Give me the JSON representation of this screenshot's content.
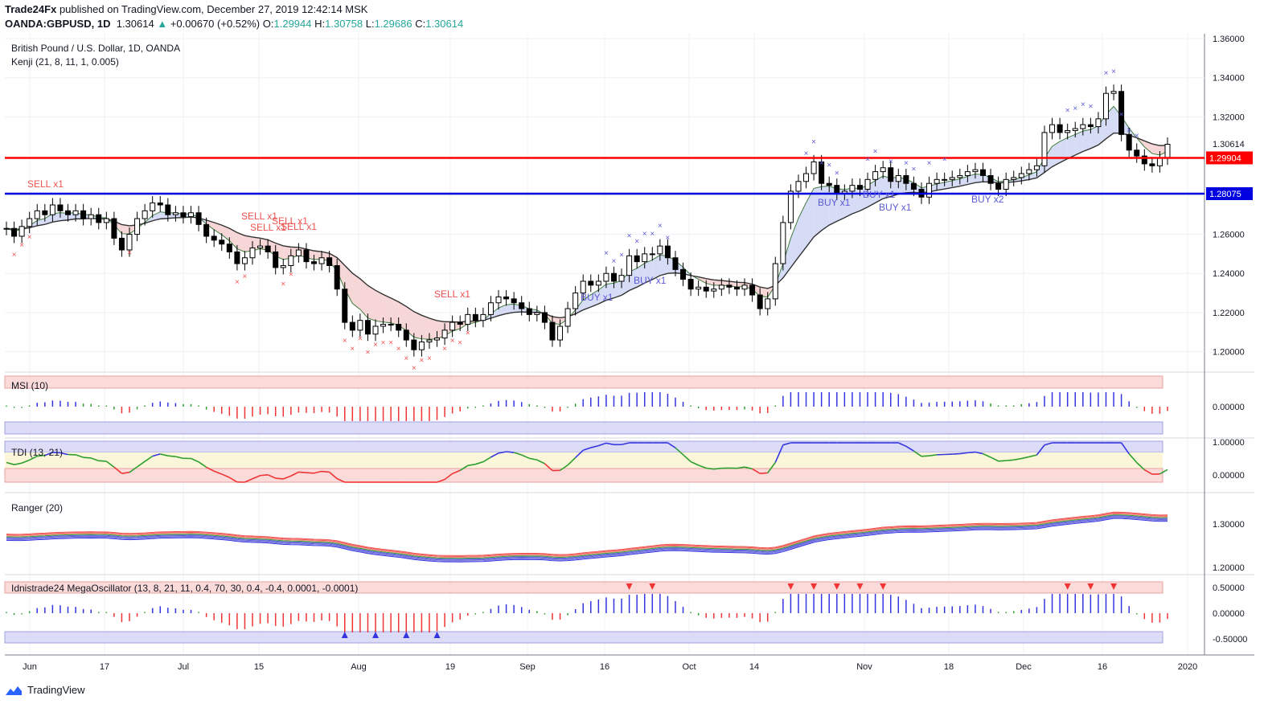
{
  "header": {
    "publisher": "Trade24Fx",
    "published_text": "published on TradingView.com, December 27, 2019 12:42:14 MSK",
    "symbol": "OANDA:GBPUSD, 1D",
    "last": "1.30614",
    "change": "+0.00670 (+0.52%)",
    "o_label": "O:",
    "o": "1.29944",
    "h_label": "H:",
    "h": "1.30758",
    "l_label": "L:",
    "l": "1.29686",
    "c_label": "C:",
    "c": "1.30614"
  },
  "main_pane": {
    "title": "British Pound / U.S. Dollar, 1D, OANDA",
    "indicator": "Kenji (21, 8, 11, 1, 0.005)",
    "price_ticks": [
      "1.36000",
      "1.34000",
      "1.32000",
      "1.30614",
      "1.28000",
      "1.26000",
      "1.24000",
      "1.22000",
      "1.20000"
    ],
    "red_level": "1.29904",
    "blue_level": "1.28075",
    "signals": [
      {
        "text": "SELL x1"
      },
      {
        "text": "SELL x1"
      },
      {
        "text": "SELL x1"
      },
      {
        "text": "SELL x1"
      },
      {
        "text": "SELL x1"
      },
      {
        "text": "SELL x1"
      },
      {
        "text": "BUY x1"
      },
      {
        "text": "BUY x1"
      },
      {
        "text": "BUY x1"
      },
      {
        "text": "BUY x1"
      },
      {
        "text": "BUY x1"
      },
      {
        "text": "BUY x2"
      }
    ]
  },
  "panes": [
    {
      "name": "MSI (10)",
      "ticks": [
        "0.00000"
      ]
    },
    {
      "name": "TDI (13, 21)",
      "ticks": [
        "1.00000",
        "0.00000"
      ]
    },
    {
      "name": "Ranger (20)",
      "ticks": [
        "1.30000",
        "1.20000"
      ]
    },
    {
      "name": "Idnistrade24 MegaOscillator (13, 8, 21, 11, 0.4, 70, 30, 0.4, -0.4, 0.0001, -0.0001)",
      "ticks": [
        "0.50000",
        "0.00000",
        "-0.50000"
      ]
    }
  ],
  "time_axis": [
    "Jun",
    "17",
    "Jul",
    "15",
    "Aug",
    "19",
    "Sep",
    "16",
    "Oct",
    "14",
    "Nov",
    "18",
    "Dec",
    "16",
    "2020"
  ],
  "footer": {
    "brand": "TradingView"
  },
  "colors": {
    "up": "#ffffff",
    "down": "#000000",
    "red_line": "#ff0000",
    "blue_line": "#0000e0",
    "sell": "#ef5350",
    "buy": "#5b5bd6"
  },
  "chart_data": {
    "type": "candlestick",
    "closes": [
      1.263,
      1.259,
      1.264,
      1.268,
      1.272,
      1.27,
      1.275,
      1.272,
      1.27,
      1.272,
      1.268,
      1.27,
      1.266,
      1.268,
      1.258,
      1.252,
      1.26,
      1.268,
      1.272,
      1.276,
      1.275,
      1.27,
      1.271,
      1.269,
      1.271,
      1.265,
      1.259,
      1.257,
      1.255,
      1.251,
      1.245,
      1.248,
      1.253,
      1.254,
      1.251,
      1.243,
      1.244,
      1.249,
      1.252,
      1.246,
      1.245,
      1.248,
      1.244,
      1.232,
      1.215,
      1.211,
      1.216,
      1.209,
      1.213,
      1.214,
      1.214,
      1.211,
      1.206,
      1.201,
      1.205,
      1.206,
      1.207,
      1.211,
      1.215,
      1.214,
      1.219,
      1.216,
      1.219,
      1.225,
      1.228,
      1.227,
      1.225,
      1.222,
      1.219,
      1.22,
      1.215,
      1.206,
      1.213,
      1.222,
      1.23,
      1.236,
      1.234,
      1.236,
      1.24,
      1.236,
      1.239,
      1.249,
      1.246,
      1.25,
      1.25,
      1.254,
      1.248,
      1.242,
      1.237,
      1.232,
      1.233,
      1.231,
      1.232,
      1.234,
      1.233,
      1.232,
      1.234,
      1.229,
      1.222,
      1.227,
      1.245,
      1.266,
      1.282,
      1.287,
      1.291,
      1.297,
      1.286,
      1.285,
      1.281,
      1.282,
      1.285,
      1.283,
      1.288,
      1.292,
      1.294,
      1.287,
      1.29,
      1.286,
      1.283,
      1.279,
      1.286,
      1.288,
      1.288,
      1.289,
      1.29,
      1.292,
      1.293,
      1.29,
      1.286,
      1.283,
      1.288,
      1.289,
      1.291,
      1.293,
      1.295,
      1.312,
      1.316,
      1.312,
      1.313,
      1.314,
      1.316,
      1.315,
      1.319,
      1.332,
      1.333,
      1.311,
      1.303,
      1.3,
      1.296,
      1.295,
      1.299,
      1.306
    ]
  }
}
